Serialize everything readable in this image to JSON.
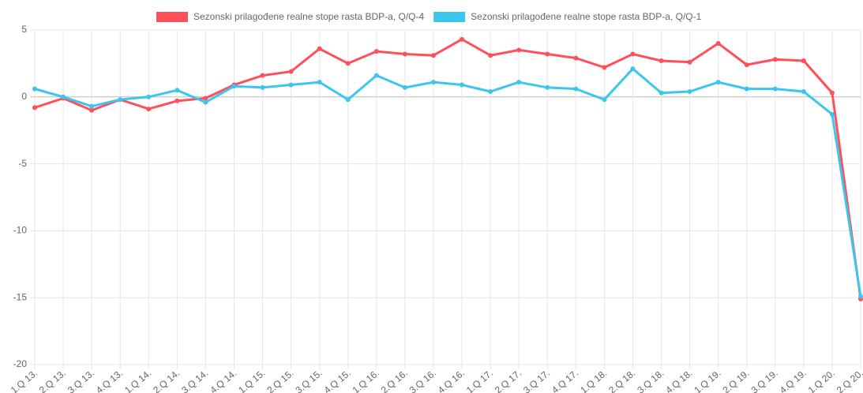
{
  "chart_data": {
    "type": "line",
    "categories": [
      "1.Q 13.",
      "2.Q 13.",
      "3.Q 13.",
      "4.Q 13.",
      "1.Q 14.",
      "2.Q 14.",
      "3.Q 14.",
      "4.Q 14.",
      "1.Q 15.",
      "2.Q 15.",
      "3.Q 15.",
      "4.Q 15.",
      "1.Q 16.",
      "2.Q 16.",
      "3.Q 16.",
      "4.Q 16.",
      "1.Q 17.",
      "2.Q 17.",
      "3.Q 17.",
      "4.Q 17.",
      "1.Q 18.",
      "2.Q 18.",
      "3.Q 18.",
      "4.Q 18.",
      "1.Q 19.",
      "2.Q 19.",
      "3.Q 19.",
      "4.Q 19.",
      "1.Q 20.",
      "2.Q 20."
    ],
    "series": [
      {
        "name": "Sezonski prilagođene realne stope rasta BDP-a, Q/Q-4",
        "color": "#ff4f5b",
        "values": [
          -0.8,
          -0.1,
          -1.0,
          -0.2,
          -0.9,
          -0.3,
          -0.1,
          0.9,
          1.6,
          1.9,
          3.6,
          2.5,
          3.4,
          3.2,
          3.1,
          4.3,
          3.1,
          3.5,
          3.2,
          2.9,
          2.2,
          3.2,
          2.7,
          2.6,
          4.0,
          2.4,
          2.8,
          2.7,
          0.3,
          -15.1
        ]
      },
      {
        "name": "Sezonski prilagođene realne stope rasta BDP-a, Q/Q-1",
        "color": "#3cc6ee",
        "values": [
          0.6,
          0.0,
          -0.7,
          -0.2,
          0.0,
          0.5,
          -0.4,
          0.8,
          0.7,
          0.9,
          1.1,
          -0.2,
          1.6,
          0.7,
          1.1,
          0.9,
          0.4,
          1.1,
          0.7,
          0.6,
          -0.2,
          2.1,
          0.3,
          0.4,
          1.1,
          0.6,
          0.6,
          0.4,
          -1.3,
          -14.9
        ]
      }
    ],
    "ylim": [
      -20,
      5
    ],
    "yticks": [
      5,
      0,
      -5,
      -10,
      -15,
      -20
    ],
    "grid": true,
    "legend": "top"
  }
}
